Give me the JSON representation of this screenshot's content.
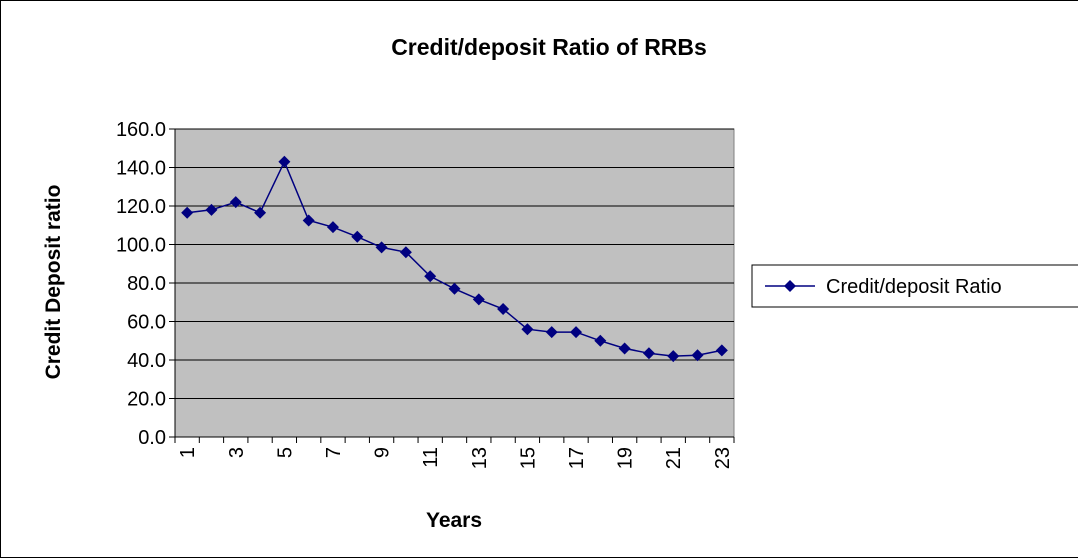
{
  "chart_data": {
    "type": "line",
    "title": "Credit/deposit Ratio of RRBs",
    "xlabel": "Years",
    "ylabel": "Credit Deposit ratio",
    "ylim": [
      0,
      160
    ],
    "y_ticks": [
      "0.0",
      "20.0",
      "40.0",
      "60.0",
      "80.0",
      "100.0",
      "120.0",
      "140.0",
      "160.0"
    ],
    "x_tick_labels": [
      "1",
      "3",
      "5",
      "7",
      "9",
      "11",
      "13",
      "15",
      "17",
      "19",
      "21",
      "23"
    ],
    "grid": true,
    "legend_position": "right",
    "plot_background": "#c0c0c0",
    "series": [
      {
        "name": "Credit/deposit Ratio",
        "color": "#000080",
        "marker": "diamond",
        "x": [
          1,
          2,
          3,
          4,
          5,
          6,
          7,
          8,
          9,
          10,
          11,
          12,
          13,
          14,
          15,
          16,
          17,
          18,
          19,
          20,
          21,
          22,
          23
        ],
        "values": [
          116.5,
          118,
          122,
          116.5,
          143,
          112.5,
          109,
          104,
          98.5,
          96,
          83.5,
          77,
          71.5,
          66.5,
          56,
          54.5,
          54.5,
          50,
          46,
          43.5,
          42,
          42.5,
          45
        ]
      }
    ]
  }
}
